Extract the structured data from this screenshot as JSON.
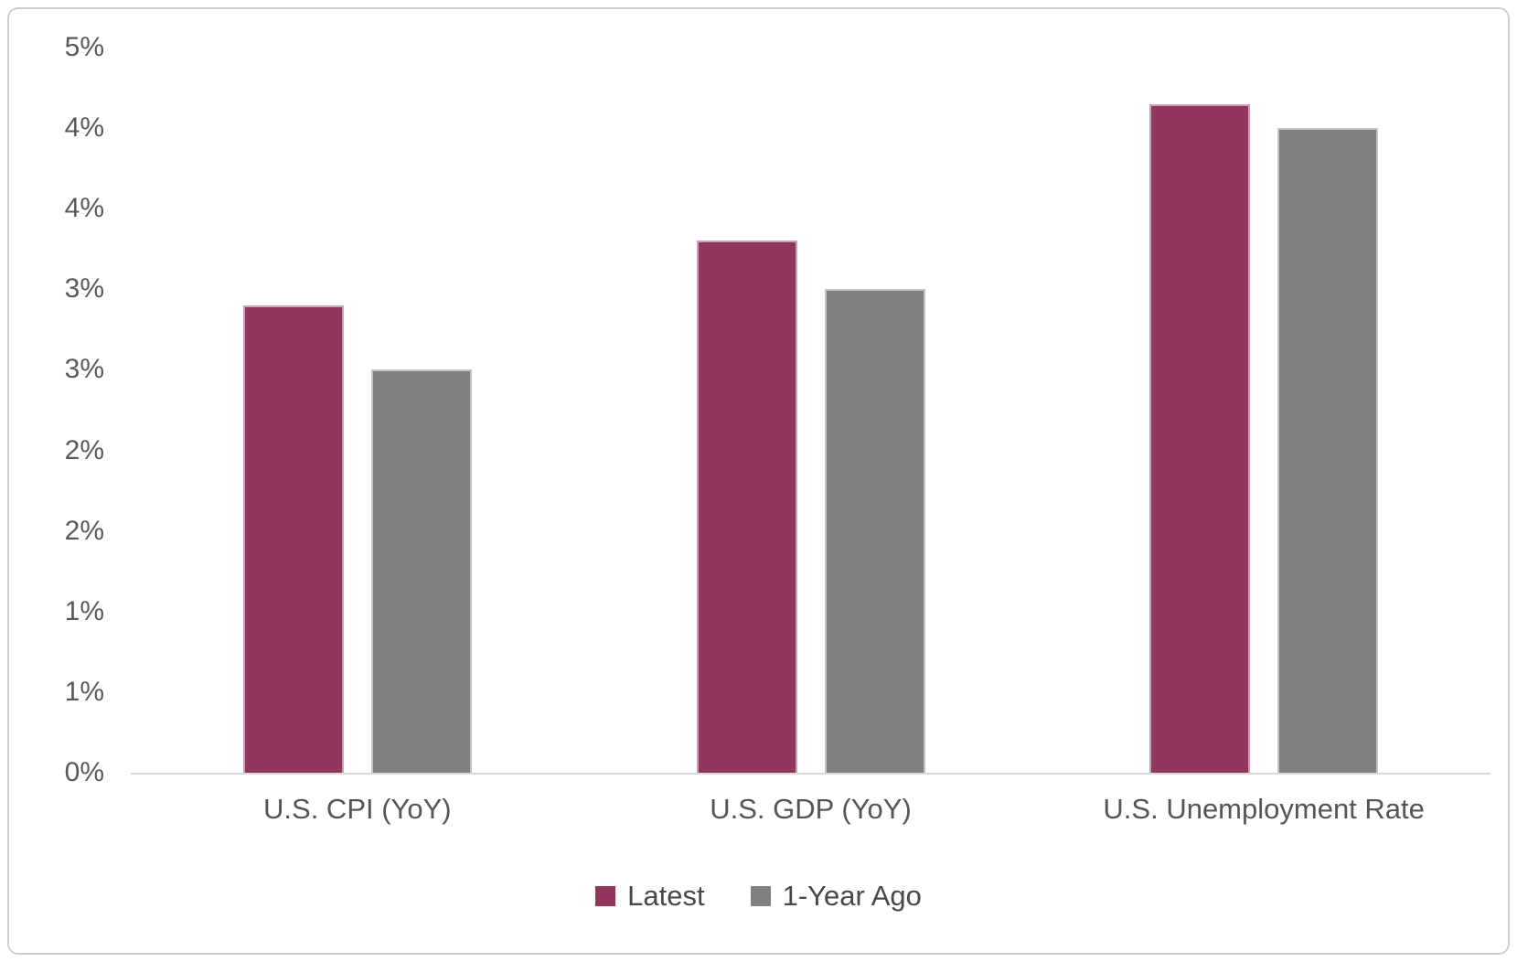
{
  "chart_data": {
    "type": "bar",
    "title": "",
    "categories": [
      "U.S. CPI (YoY)",
      "U.S. GDP (YoY)",
      "U.S. Unemployment Rate"
    ],
    "series": [
      {
        "name": "Latest",
        "color": "#93365e",
        "values": [
          2.9,
          3.3,
          4.15
        ]
      },
      {
        "name": "1-Year Ago",
        "color": "#7f7f7f",
        "values": [
          2.5,
          3.0,
          4.0
        ]
      }
    ],
    "xlabel": "",
    "ylabel": "",
    "ylim": [
      0,
      4.5
    ],
    "ytick_step": 0.5,
    "ytick_labels_bottom_to_top": [
      "0%",
      "1%",
      "1%",
      "2%",
      "2%",
      "3%",
      "3%",
      "4%",
      "4%",
      "5%"
    ],
    "grid": false,
    "legend_position": "bottom",
    "axis_line_color": "#d9d9d9",
    "text_color": "#595959"
  }
}
